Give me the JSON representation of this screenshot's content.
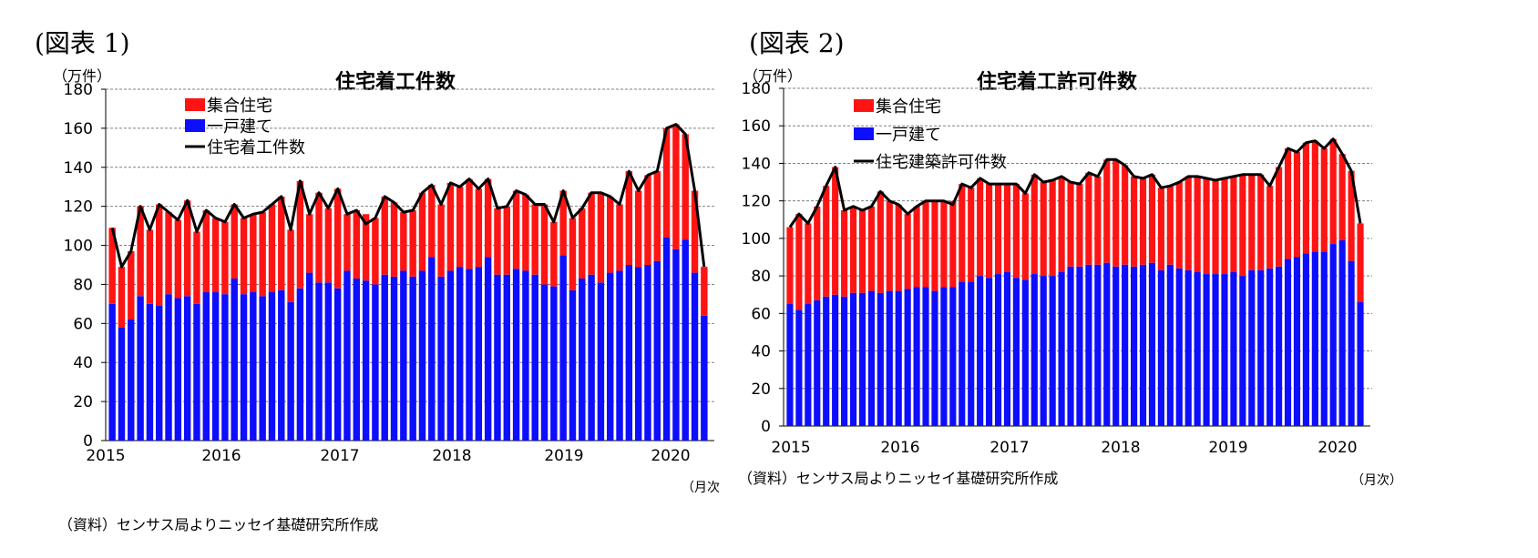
{
  "colors": {
    "multi": "#ff1414",
    "single": "#0d0dff",
    "total": "#000000",
    "grid": "#808080"
  },
  "panels": [
    {
      "fig_label": "(図表 1)",
      "unit": "（万件）",
      "title": "住宅着工件数",
      "source": "（資料）センサス局よりニッセイ基礎研究所作成",
      "x_unit": "（月次",
      "legend": {
        "multi": "集合住宅",
        "single": "一戸建て",
        "total": "住宅着工件数"
      }
    },
    {
      "fig_label": "(図表 2)",
      "unit": "（万件）",
      "title": "住宅着工許可件数",
      "source": "（資料）センサス局よりニッセイ基礎研究所作成",
      "x_unit": "（月次）",
      "legend": {
        "multi": "集合住宅",
        "single": "一戸建て",
        "total": "住宅建築許可件数"
      }
    }
  ],
  "chart_data": [
    {
      "type": "bar",
      "stacked": true,
      "title": "住宅着工件数",
      "ylabel": "（万件）",
      "xlabel": "（月次",
      "ylim": [
        0,
        180
      ],
      "yticks": [
        0,
        20,
        40,
        60,
        80,
        100,
        120,
        140,
        160,
        180
      ],
      "x_start": "2015-01",
      "x_tick_labels": [
        "2015",
        "2016",
        "2017",
        "2018",
        "2019",
        "2020"
      ],
      "grid": true,
      "legend_position": "top-left",
      "series": [
        {
          "name": "一戸建て",
          "kind": "bar",
          "values": [
            70,
            58,
            62,
            74,
            70,
            69,
            75,
            73,
            74,
            70,
            76,
            76,
            75,
            83,
            75,
            76,
            74,
            76,
            77,
            71,
            78,
            86,
            81,
            81,
            78,
            87,
            83,
            82,
            80,
            85,
            84,
            87,
            84,
            87,
            94,
            84,
            87,
            89,
            88,
            89,
            94,
            85,
            85,
            88,
            87,
            85,
            80,
            79,
            95,
            77,
            83,
            85,
            81,
            86,
            87,
            90,
            89,
            90,
            92,
            104,
            98,
            103,
            86,
            64
          ]
        },
        {
          "name": "集合住宅",
          "kind": "bar",
          "values": [
            39,
            31,
            35,
            46,
            38,
            52,
            42,
            40,
            49,
            37,
            42,
            38,
            37,
            38,
            39,
            40,
            43,
            45,
            48,
            37,
            55,
            30,
            46,
            38,
            51,
            29,
            35,
            34,
            34,
            40,
            38,
            30,
            34,
            40,
            37,
            37,
            45,
            41,
            46,
            40,
            40,
            34,
            35,
            40,
            39,
            36,
            41,
            33,
            33,
            37,
            36,
            42,
            46,
            39,
            34,
            48,
            39,
            46,
            46,
            56,
            64,
            54,
            42,
            25
          ]
        },
        {
          "name": "住宅着工件数",
          "kind": "line",
          "values": [
            109,
            89,
            97,
            120,
            108,
            121,
            117,
            113,
            123,
            107,
            118,
            114,
            112,
            121,
            114,
            116,
            117,
            121,
            125,
            108,
            133,
            116,
            127,
            119,
            129,
            116,
            118,
            111,
            114,
            125,
            122,
            117,
            118,
            127,
            131,
            121,
            132,
            130,
            134,
            129,
            134,
            119,
            120,
            128,
            126,
            121,
            121,
            112,
            128,
            114,
            119,
            127,
            127,
            125,
            121,
            138,
            128,
            136,
            138,
            160,
            162,
            157,
            128,
            89
          ]
        }
      ]
    },
    {
      "type": "bar",
      "stacked": true,
      "title": "住宅着工許可件数",
      "ylabel": "（万件）",
      "xlabel": "（月次）",
      "ylim": [
        0,
        180
      ],
      "yticks": [
        0,
        20,
        40,
        60,
        80,
        100,
        120,
        140,
        160,
        180
      ],
      "x_start": "2015-01",
      "x_tick_labels": [
        "2015",
        "2016",
        "2017",
        "2018",
        "2019",
        "2020"
      ],
      "grid": true,
      "legend_position": "top-left",
      "series": [
        {
          "name": "一戸建て",
          "kind": "bar",
          "values": [
            65,
            62,
            65,
            67,
            69,
            70,
            69,
            71,
            71,
            72,
            71,
            72,
            72,
            73,
            74,
            74,
            72,
            74,
            74,
            77,
            77,
            80,
            79,
            81,
            82,
            79,
            78,
            81,
            80,
            80,
            82,
            85,
            85,
            86,
            86,
            87,
            85,
            86,
            85,
            86,
            87,
            83,
            86,
            84,
            83,
            82,
            81,
            81,
            81,
            82,
            80,
            83,
            83,
            84,
            85,
            89,
            90,
            92,
            93,
            93,
            97,
            99,
            88,
            66
          ]
        },
        {
          "name": "集合住宅",
          "kind": "bar",
          "values": [
            41,
            51,
            43,
            50,
            59,
            68,
            46,
            46,
            44,
            45,
            54,
            48,
            46,
            40,
            43,
            46,
            48,
            46,
            46,
            52,
            50,
            52,
            50,
            48,
            47,
            50,
            46,
            53,
            50,
            51,
            51,
            45,
            44,
            49,
            47,
            55,
            57,
            53,
            48,
            46,
            47,
            44,
            42,
            46,
            50,
            51,
            51,
            50,
            51,
            51,
            54,
            51,
            51,
            44,
            53,
            59,
            56,
            59,
            59,
            55,
            56,
            46,
            48,
            42
          ]
        },
        {
          "name": "住宅建築許可件数",
          "kind": "line",
          "values": [
            106,
            113,
            108,
            117,
            128,
            138,
            115,
            117,
            115,
            117,
            125,
            120,
            118,
            113,
            117,
            120,
            120,
            120,
            118,
            129,
            127,
            132,
            129,
            129,
            129,
            129,
            124,
            134,
            130,
            131,
            133,
            130,
            129,
            135,
            133,
            142,
            142,
            139,
            133,
            132,
            134,
            127,
            128,
            130,
            133,
            133,
            132,
            131,
            132,
            133,
            134,
            134,
            134,
            128,
            138,
            148,
            146,
            151,
            152,
            148,
            153,
            145,
            136,
            108
          ]
        }
      ]
    }
  ]
}
